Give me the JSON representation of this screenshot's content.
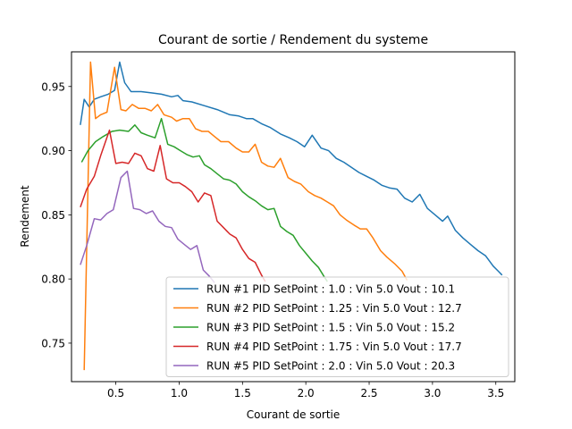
{
  "chart_data": {
    "type": "line",
    "title": "Courant de sortie / Rendement du systeme",
    "xlabel": "Courant de sortie",
    "ylabel": "Rendement",
    "xlim": [
      0.15,
      3.65
    ],
    "ylim": [
      0.72,
      0.977
    ],
    "xticks": [
      0.5,
      1.0,
      1.5,
      2.0,
      2.5,
      3.0,
      3.5
    ],
    "xtick_labels": [
      "0.5",
      "1.0",
      "1.5",
      "2.0",
      "2.5",
      "3.0",
      "3.5"
    ],
    "yticks": [
      0.75,
      0.8,
      0.85,
      0.9,
      0.95
    ],
    "ytick_labels": [
      "0.75",
      "0.80",
      "0.85",
      "0.90",
      "0.95"
    ],
    "grid": false,
    "legend_position": "lower-right",
    "series": [
      {
        "name": "RUN #1 PID SetPoint : 1.0 : Vin 5.0 Vout : 10.1",
        "color": "#1f77b4",
        "points": [
          [
            0.22,
            0.92
          ],
          [
            0.25,
            0.94
          ],
          [
            0.29,
            0.934
          ],
          [
            0.33,
            0.94
          ],
          [
            0.38,
            0.942
          ],
          [
            0.44,
            0.944
          ],
          [
            0.49,
            0.947
          ],
          [
            0.53,
            0.969
          ],
          [
            0.57,
            0.953
          ],
          [
            0.62,
            0.946
          ],
          [
            0.7,
            0.946
          ],
          [
            0.78,
            0.945
          ],
          [
            0.86,
            0.944
          ],
          [
            0.94,
            0.942
          ],
          [
            0.99,
            0.943
          ],
          [
            1.03,
            0.939
          ],
          [
            1.1,
            0.938
          ],
          [
            1.2,
            0.935
          ],
          [
            1.3,
            0.932
          ],
          [
            1.4,
            0.928
          ],
          [
            1.47,
            0.927
          ],
          [
            1.53,
            0.925
          ],
          [
            1.58,
            0.925
          ],
          [
            1.65,
            0.921
          ],
          [
            1.72,
            0.918
          ],
          [
            1.8,
            0.913
          ],
          [
            1.87,
            0.91
          ],
          [
            1.93,
            0.907
          ],
          [
            1.99,
            0.903
          ],
          [
            2.05,
            0.912
          ],
          [
            2.12,
            0.902
          ],
          [
            2.18,
            0.9
          ],
          [
            2.24,
            0.894
          ],
          [
            2.3,
            0.891
          ],
          [
            2.36,
            0.887
          ],
          [
            2.42,
            0.883
          ],
          [
            2.48,
            0.88
          ],
          [
            2.54,
            0.877
          ],
          [
            2.6,
            0.873
          ],
          [
            2.66,
            0.871
          ],
          [
            2.72,
            0.87
          ],
          [
            2.78,
            0.863
          ],
          [
            2.84,
            0.86
          ],
          [
            2.9,
            0.866
          ],
          [
            2.96,
            0.855
          ],
          [
            3.02,
            0.85
          ],
          [
            3.08,
            0.845
          ],
          [
            3.12,
            0.849
          ],
          [
            3.18,
            0.838
          ],
          [
            3.24,
            0.832
          ],
          [
            3.3,
            0.827
          ],
          [
            3.36,
            0.822
          ],
          [
            3.42,
            0.818
          ],
          [
            3.48,
            0.81
          ],
          [
            3.52,
            0.806
          ],
          [
            3.55,
            0.803
          ]
        ]
      },
      {
        "name": "RUN #2 PID SetPoint : 1.25 : Vin 5.0 Vout : 12.7",
        "color": "#ff7f0e",
        "points": [
          [
            0.25,
            0.729
          ],
          [
            0.3,
            0.969
          ],
          [
            0.34,
            0.925
          ],
          [
            0.38,
            0.928
          ],
          [
            0.43,
            0.93
          ],
          [
            0.49,
            0.965
          ],
          [
            0.54,
            0.932
          ],
          [
            0.58,
            0.931
          ],
          [
            0.63,
            0.936
          ],
          [
            0.68,
            0.933
          ],
          [
            0.73,
            0.933
          ],
          [
            0.78,
            0.931
          ],
          [
            0.83,
            0.936
          ],
          [
            0.88,
            0.928
          ],
          [
            0.94,
            0.926
          ],
          [
            0.98,
            0.923
          ],
          [
            1.03,
            0.925
          ],
          [
            1.08,
            0.925
          ],
          [
            1.13,
            0.917
          ],
          [
            1.18,
            0.915
          ],
          [
            1.23,
            0.915
          ],
          [
            1.28,
            0.911
          ],
          [
            1.33,
            0.907
          ],
          [
            1.39,
            0.907
          ],
          [
            1.45,
            0.902
          ],
          [
            1.5,
            0.899
          ],
          [
            1.55,
            0.899
          ],
          [
            1.6,
            0.905
          ],
          [
            1.65,
            0.891
          ],
          [
            1.7,
            0.888
          ],
          [
            1.75,
            0.887
          ],
          [
            1.8,
            0.894
          ],
          [
            1.86,
            0.879
          ],
          [
            1.91,
            0.876
          ],
          [
            1.96,
            0.874
          ],
          [
            2.02,
            0.868
          ],
          [
            2.07,
            0.865
          ],
          [
            2.12,
            0.863
          ],
          [
            2.17,
            0.86
          ],
          [
            2.22,
            0.857
          ],
          [
            2.27,
            0.85
          ],
          [
            2.32,
            0.846
          ],
          [
            2.38,
            0.842
          ],
          [
            2.43,
            0.839
          ],
          [
            2.48,
            0.839
          ],
          [
            2.53,
            0.832
          ],
          [
            2.59,
            0.822
          ],
          [
            2.64,
            0.817
          ],
          [
            2.7,
            0.812
          ],
          [
            2.76,
            0.806
          ],
          [
            2.8,
            0.799
          ]
        ]
      },
      {
        "name": "RUN #3 PID SetPoint : 1.5 : Vin 5.0 Vout : 15.2",
        "color": "#2ca02c",
        "points": [
          [
            0.23,
            0.891
          ],
          [
            0.28,
            0.9
          ],
          [
            0.34,
            0.907
          ],
          [
            0.4,
            0.911
          ],
          [
            0.47,
            0.915
          ],
          [
            0.53,
            0.916
          ],
          [
            0.6,
            0.915
          ],
          [
            0.65,
            0.92
          ],
          [
            0.7,
            0.914
          ],
          [
            0.75,
            0.912
          ],
          [
            0.81,
            0.91
          ],
          [
            0.86,
            0.925
          ],
          [
            0.91,
            0.905
          ],
          [
            0.96,
            0.903
          ],
          [
            1.01,
            0.9
          ],
          [
            1.06,
            0.897
          ],
          [
            1.11,
            0.895
          ],
          [
            1.16,
            0.896
          ],
          [
            1.2,
            0.889
          ],
          [
            1.25,
            0.886
          ],
          [
            1.3,
            0.882
          ],
          [
            1.35,
            0.878
          ],
          [
            1.4,
            0.877
          ],
          [
            1.45,
            0.874
          ],
          [
            1.5,
            0.868
          ],
          [
            1.55,
            0.864
          ],
          [
            1.6,
            0.861
          ],
          [
            1.65,
            0.857
          ],
          [
            1.7,
            0.854
          ],
          [
            1.75,
            0.855
          ],
          [
            1.8,
            0.841
          ],
          [
            1.85,
            0.837
          ],
          [
            1.9,
            0.834
          ],
          [
            1.95,
            0.826
          ],
          [
            2.0,
            0.82
          ],
          [
            2.05,
            0.814
          ],
          [
            2.1,
            0.809
          ],
          [
            2.15,
            0.801
          ],
          [
            2.17,
            0.798
          ]
        ]
      },
      {
        "name": "RUN #4 PID SetPoint : 1.75 : Vin 5.0 Vout : 17.7",
        "color": "#d62728",
        "points": [
          [
            0.22,
            0.856
          ],
          [
            0.27,
            0.87
          ],
          [
            0.33,
            0.88
          ],
          [
            0.38,
            0.896
          ],
          [
            0.45,
            0.916
          ],
          [
            0.5,
            0.89
          ],
          [
            0.55,
            0.891
          ],
          [
            0.6,
            0.89
          ],
          [
            0.65,
            0.898
          ],
          [
            0.7,
            0.896
          ],
          [
            0.75,
            0.886
          ],
          [
            0.8,
            0.884
          ],
          [
            0.85,
            0.904
          ],
          [
            0.9,
            0.878
          ],
          [
            0.95,
            0.875
          ],
          [
            1.0,
            0.875
          ],
          [
            1.05,
            0.872
          ],
          [
            1.1,
            0.868
          ],
          [
            1.15,
            0.86
          ],
          [
            1.2,
            0.867
          ],
          [
            1.25,
            0.865
          ],
          [
            1.3,
            0.845
          ],
          [
            1.35,
            0.84
          ],
          [
            1.4,
            0.835
          ],
          [
            1.45,
            0.832
          ],
          [
            1.5,
            0.823
          ],
          [
            1.55,
            0.816
          ],
          [
            1.6,
            0.813
          ],
          [
            1.65,
            0.803
          ],
          [
            1.68,
            0.798
          ]
        ]
      },
      {
        "name": "RUN #5 PID SetPoint : 2.0 : Vin 5.0 Vout : 20.3",
        "color": "#9467bd",
        "points": [
          [
            0.22,
            0.811
          ],
          [
            0.27,
            0.826
          ],
          [
            0.33,
            0.847
          ],
          [
            0.38,
            0.846
          ],
          [
            0.43,
            0.851
          ],
          [
            0.48,
            0.854
          ],
          [
            0.54,
            0.879
          ],
          [
            0.59,
            0.884
          ],
          [
            0.64,
            0.855
          ],
          [
            0.69,
            0.854
          ],
          [
            0.74,
            0.851
          ],
          [
            0.79,
            0.853
          ],
          [
            0.84,
            0.845
          ],
          [
            0.89,
            0.841
          ],
          [
            0.94,
            0.84
          ],
          [
            0.99,
            0.831
          ],
          [
            1.04,
            0.827
          ],
          [
            1.09,
            0.823
          ],
          [
            1.14,
            0.826
          ],
          [
            1.19,
            0.807
          ],
          [
            1.24,
            0.802
          ],
          [
            1.28,
            0.797
          ]
        ]
      }
    ]
  }
}
